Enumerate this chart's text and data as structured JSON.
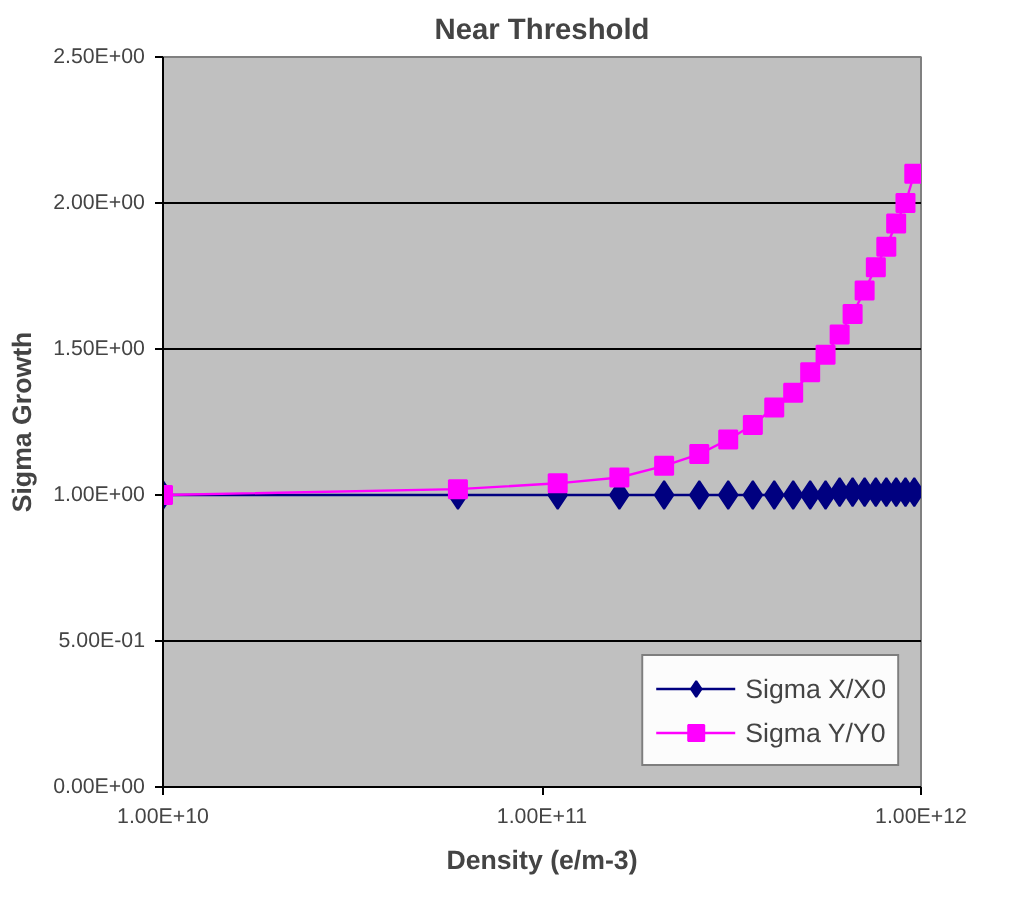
{
  "chart_data": {
    "type": "line",
    "title": "Near Threshold",
    "xlabel": "Density (e/m-3)",
    "ylabel": "Sigma Growth",
    "x": [
      10000000000.0,
      60000000000.0,
      110000000000.0,
      160000000000.0,
      210000000000.0,
      260000000000.0,
      310000000000.0,
      360000000000.0,
      410000000000.0,
      460000000000.0,
      510000000000.0,
      560000000000.0,
      610000000000.0,
      660000000000.0,
      710000000000.0,
      760000000000.0,
      810000000000.0,
      860000000000.0,
      910000000000.0,
      960000000000.0
    ],
    "series": [
      {
        "name": "Sigma X/X0",
        "color": "#000080",
        "marker": "diamond",
        "values": [
          1.0,
          1.0,
          1.0,
          1.0,
          1.0,
          1.0,
          1.0,
          1.0,
          1.0,
          1.0,
          1.0,
          1.0,
          1.01,
          1.01,
          1.01,
          1.01,
          1.01,
          1.01,
          1.01,
          1.01
        ]
      },
      {
        "name": "Sigma Y/Y0",
        "color": "#ff00ff",
        "marker": "square",
        "values": [
          1.0,
          1.02,
          1.04,
          1.06,
          1.1,
          1.14,
          1.19,
          1.24,
          1.3,
          1.35,
          1.42,
          1.48,
          1.55,
          1.62,
          1.7,
          1.78,
          1.85,
          1.93,
          2.0,
          2.1
        ]
      }
    ],
    "log": "x",
    "xlim": [
      10000000000.0,
      1000000000000.0
    ],
    "xticks": [
      {
        "value": 10000000000.0,
        "label": "1.00E+10"
      },
      {
        "value": 100000000000.0,
        "label": "1.00E+11"
      },
      {
        "value": 1000000000000.0,
        "label": "1.00E+12"
      }
    ],
    "ylim": [
      0,
      2.5
    ],
    "yticks": [
      {
        "value": 0,
        "label": "0.00E+00"
      },
      {
        "value": 0.5,
        "label": "5.00E-01"
      },
      {
        "value": 1.0,
        "label": "1.00E+00"
      },
      {
        "value": 1.5,
        "label": "1.50E+00"
      },
      {
        "value": 2.0,
        "label": "2.00E+00"
      },
      {
        "value": 2.5,
        "label": "2.50E+00"
      }
    ],
    "grid": "y",
    "legend": "bottom right",
    "line_style": "solid"
  }
}
